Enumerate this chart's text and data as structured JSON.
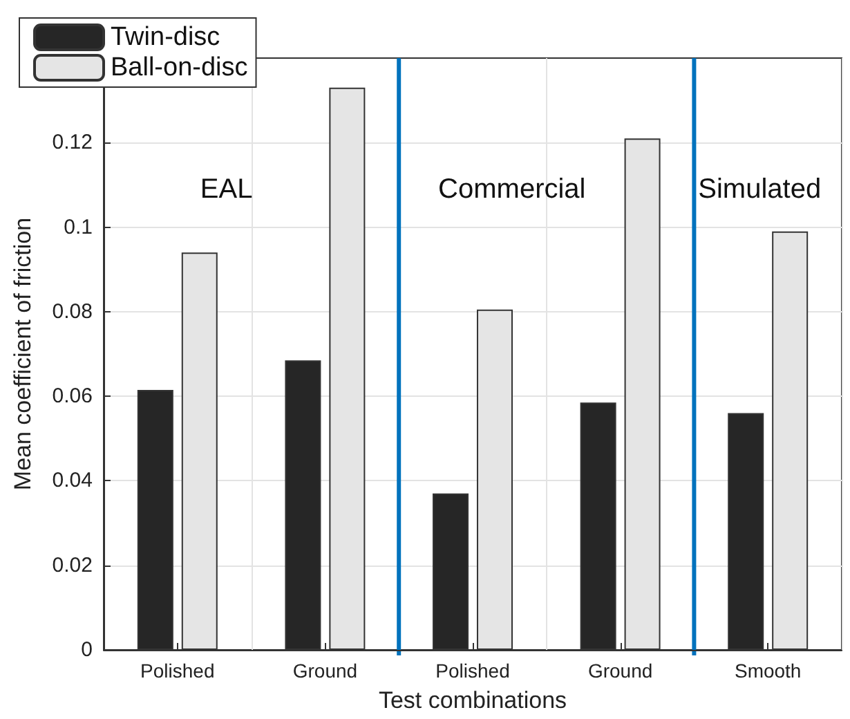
{
  "chart_data": {
    "type": "bar",
    "xlabel": "Test combinations",
    "ylabel": "Mean coefficient of friction",
    "categories": [
      "Polished",
      "Ground",
      "Polished",
      "Ground",
      "Smooth"
    ],
    "ylim": [
      0,
      0.14
    ],
    "yticks": [
      0,
      0.02,
      0.04,
      0.06,
      0.08,
      0.1,
      0.12
    ],
    "series": [
      {
        "name": "Twin-disc",
        "color": "#262626",
        "values": [
          0.0615,
          0.0685,
          0.037,
          0.0585,
          0.056
        ]
      },
      {
        "name": "Ball-on-disc",
        "color": "#e5e5e5",
        "values": [
          0.094,
          0.133,
          0.0805,
          0.121,
          0.099
        ]
      }
    ],
    "annotations": [
      "EAL",
      "Commercial",
      "Simulated"
    ],
    "grid": true,
    "legend": "top left"
  }
}
